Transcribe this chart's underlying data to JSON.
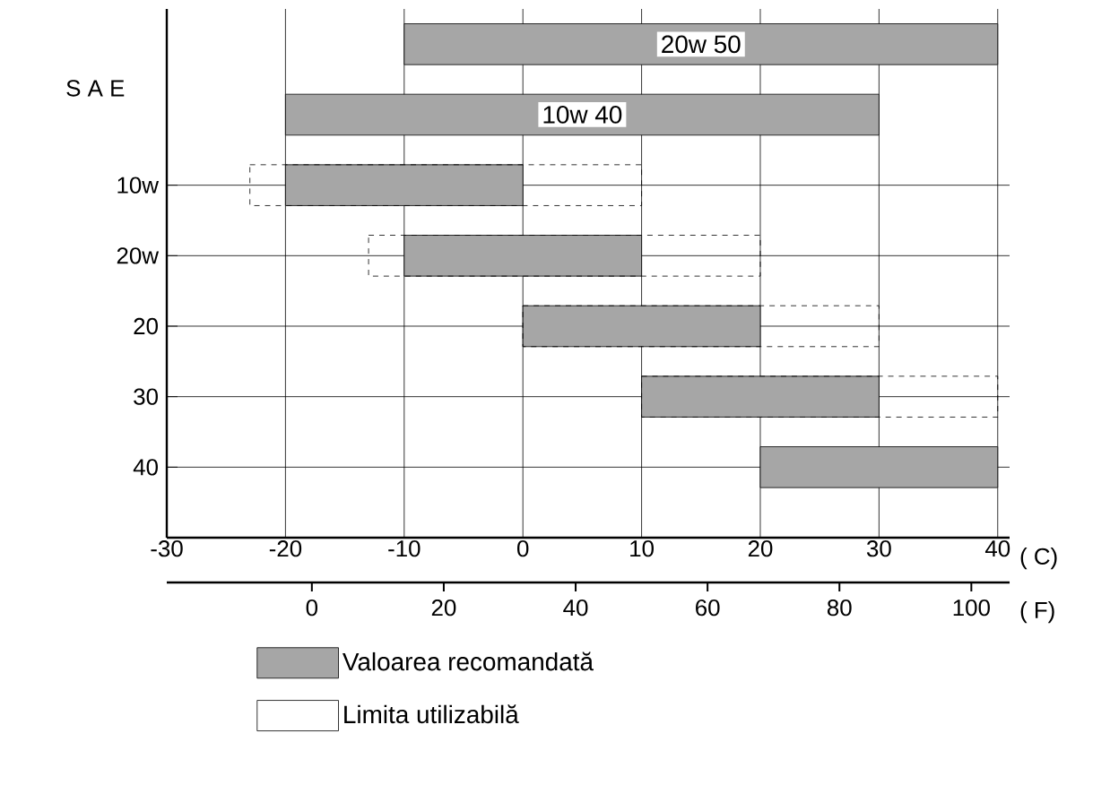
{
  "chart_data": {
    "type": "bar",
    "orientation": "horizontal",
    "ylabel": "S A E",
    "xlabel": "( C)",
    "x2label": "( F)",
    "categories": [
      null,
      null,
      "10w",
      "20w",
      "20",
      "30",
      "40"
    ],
    "xlim": [
      -30,
      41
    ],
    "xticks": [
      -30,
      -20,
      -10,
      0,
      10,
      20,
      30,
      40
    ],
    "x2lim": [
      -22,
      105.8
    ],
    "x2ticks": [
      0,
      20,
      40,
      60,
      80,
      100
    ],
    "grid": true,
    "legend": "bottom",
    "annotations": [
      "20w 50",
      "10w 40"
    ],
    "series": [
      {
        "name": "Valoarea recomandată",
        "color": "#a6a6a6",
        "line_style": "solid",
        "base": [
          -10,
          -20,
          -20,
          -10,
          0,
          10,
          20
        ],
        "values": [
          50,
          50,
          20,
          20,
          20,
          20,
          20
        ]
      },
      {
        "name": "Limita utilizabilă",
        "color": "#000000",
        "line_style": "dashed",
        "base": [
          null,
          null,
          -23,
          -13,
          0,
          10,
          null
        ],
        "values": [
          null,
          null,
          33,
          33,
          30,
          30,
          null
        ]
      }
    ]
  }
}
